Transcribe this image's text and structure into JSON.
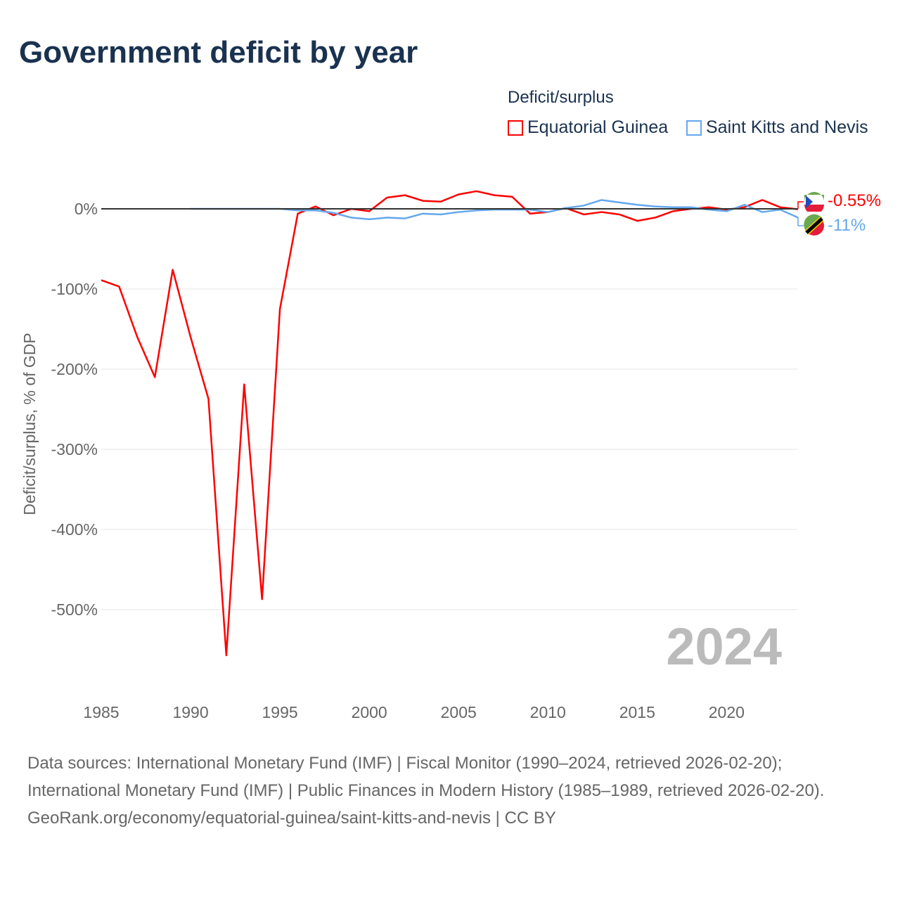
{
  "title": "Government deficit by year",
  "legend": {
    "title": "Deficit/surplus",
    "items": [
      "Equatorial Guinea",
      "Saint Kitts and Nevis"
    ]
  },
  "year_label": "2024",
  "end_labels": [
    "-0.55%",
    "-11%"
  ],
  "footer": {
    "sources": "Data sources: International Monetary Fund (IMF) | Fiscal Monitor (1990–2024, retrieved 2026-02-20); International Monetary Fund (IMF) | Public Finances in Modern History (1985–1989, retrieved 2026-02-20).",
    "link": "GeoRank.org/economy/equatorial-guinea/saint-kitts-and-nevis | CC BY"
  },
  "chart_data": {
    "type": "line",
    "title": "Government deficit by year",
    "ylabel": "Deficit/surplus, % of GDP",
    "xlabel": "",
    "xlim": [
      1985,
      2024
    ],
    "ylim": [
      -600,
      40
    ],
    "x_ticks": [
      1985,
      1990,
      1995,
      2000,
      2005,
      2010,
      2015,
      2020
    ],
    "y_ticks": [
      0,
      -100,
      -200,
      -300,
      -400,
      -500
    ],
    "y_tick_labels": [
      "0%",
      "-100%",
      "-200%",
      "-300%",
      "-400%",
      "-500%"
    ],
    "series": [
      {
        "name": "Equatorial Guinea",
        "color": "#ff0000",
        "x_start": 1985,
        "values": [
          -89,
          -97,
          -159,
          -210,
          -76,
          -160,
          -237,
          -557,
          -219,
          -487,
          -125,
          -6,
          3,
          -8,
          0,
          -3,
          14,
          17,
          10,
          9,
          18,
          22,
          17,
          15,
          -6,
          -4,
          1,
          -7,
          -4,
          -7,
          -15,
          -11,
          -3,
          0,
          2,
          -1,
          2,
          11,
          2,
          -0.55
        ]
      },
      {
        "name": "Saint Kitts and Nevis",
        "color": "#64a8ec",
        "x_start": 1990,
        "values": [
          0,
          0,
          0,
          0,
          0,
          0,
          -2,
          -2,
          -5,
          -11,
          -13,
          -11,
          -12,
          -6,
          -7,
          -4,
          -2,
          -1,
          -1,
          -1,
          -4,
          1,
          4,
          11,
          8,
          5,
          3,
          2,
          2,
          -1,
          -3,
          5,
          -4,
          -1,
          -11
        ]
      }
    ]
  }
}
